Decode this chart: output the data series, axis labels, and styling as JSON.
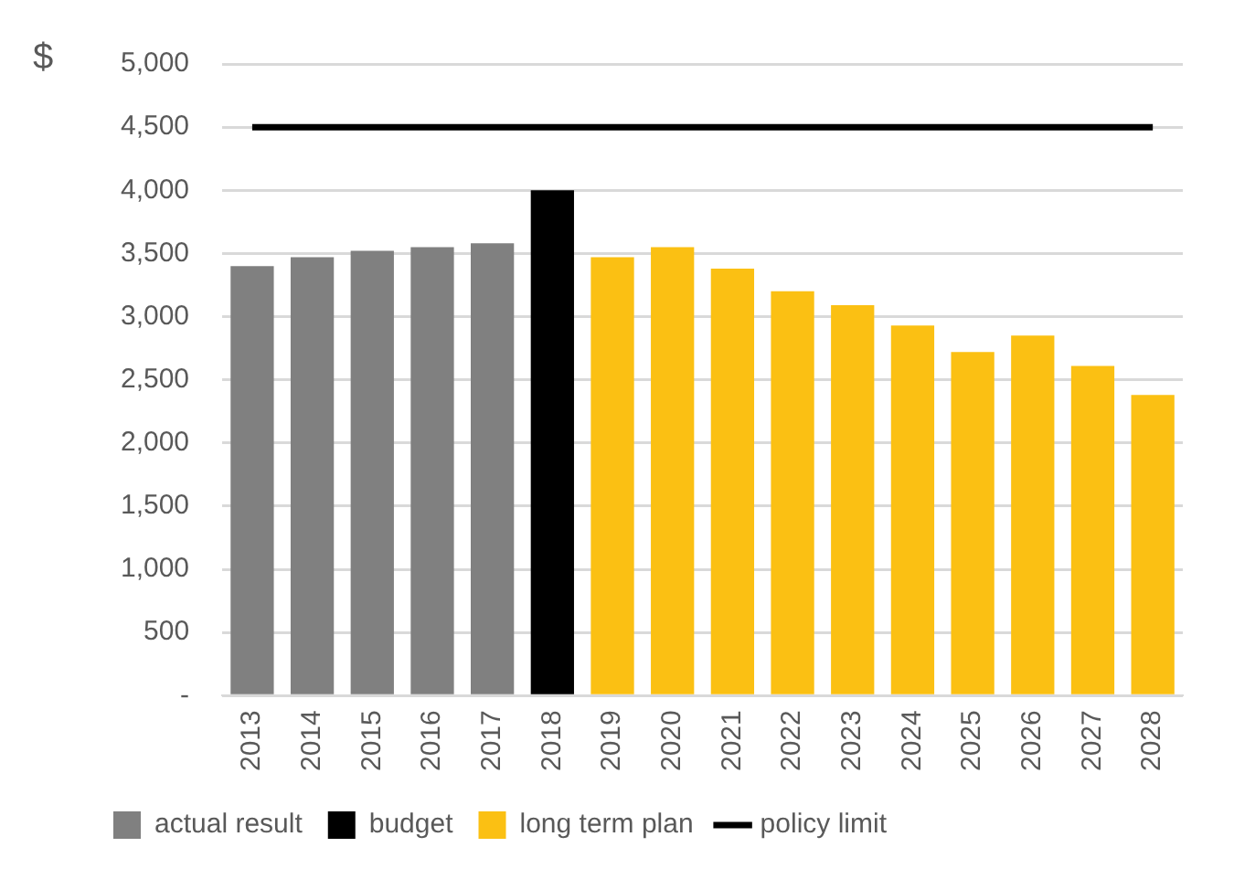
{
  "chart_data": {
    "type": "bar",
    "ylabel": "$",
    "stacked": true,
    "grid": "y",
    "legend": "bottom",
    "categories": [
      "2013",
      "2014",
      "2015",
      "2016",
      "2017",
      "2018",
      "2019",
      "2020",
      "2021",
      "2022",
      "2023",
      "2024",
      "2025",
      "2026",
      "2027",
      "2028"
    ],
    "ylim": [
      0,
      5000
    ],
    "yticks": [
      {
        "value": 0,
        "label": "-"
      },
      {
        "value": 500,
        "label": "500"
      },
      {
        "value": 1000,
        "label": "1,000"
      },
      {
        "value": 1500,
        "label": "1,500"
      },
      {
        "value": 2000,
        "label": "2,000"
      },
      {
        "value": 2500,
        "label": "2,500"
      },
      {
        "value": 3000,
        "label": "3,000"
      },
      {
        "value": 3500,
        "label": "3,500"
      },
      {
        "value": 4000,
        "label": "4,000"
      },
      {
        "value": 4500,
        "label": "4,500"
      },
      {
        "value": 5000,
        "label": "5,000"
      }
    ],
    "series": [
      {
        "name": "actual result",
        "color": "#808080",
        "values": [
          3400,
          3470,
          3520,
          3550,
          3580,
          null,
          null,
          null,
          null,
          null,
          null,
          null,
          null,
          null,
          null,
          null
        ]
      },
      {
        "name": "budget",
        "color": "#000000",
        "values": [
          null,
          null,
          null,
          null,
          null,
          4000,
          null,
          null,
          null,
          null,
          null,
          null,
          null,
          null,
          null,
          null
        ]
      },
      {
        "name": "long term plan",
        "color": "#fbc013",
        "values": [
          null,
          null,
          null,
          null,
          null,
          null,
          3470,
          3550,
          3380,
          3200,
          3090,
          2930,
          2720,
          2850,
          2610,
          2380
        ]
      },
      {
        "name": "policy limit",
        "type": "line",
        "color": "#000000",
        "marker": "none",
        "line_style": "solid",
        "values": [
          4500,
          4500,
          4500,
          4500,
          4500,
          4500,
          4500,
          4500,
          4500,
          4500,
          4500,
          4500,
          4500,
          4500,
          4500,
          4500
        ]
      }
    ]
  }
}
